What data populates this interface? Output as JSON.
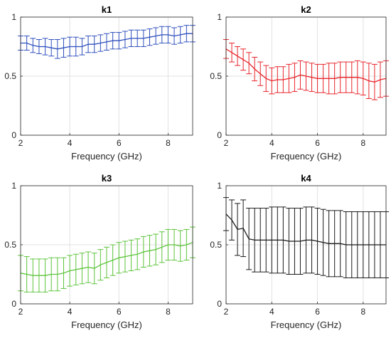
{
  "chart_data": [
    {
      "type": "line",
      "title": "k1",
      "xlabel": "Frequency (GHz)",
      "ylabel": "",
      "xlim": [
        2,
        9
      ],
      "ylim": [
        0,
        1
      ],
      "xticks": [
        "2",
        "4",
        "6",
        "8"
      ],
      "yticks": [
        "0",
        "0.5",
        "1"
      ],
      "grid": true,
      "color": "#2f4fbd",
      "x": [
        2.0,
        2.25,
        2.5,
        2.75,
        3.0,
        3.25,
        3.5,
        3.75,
        4.0,
        4.25,
        4.5,
        4.75,
        5.0,
        5.25,
        5.5,
        5.75,
        6.0,
        6.25,
        6.5,
        6.75,
        7.0,
        7.25,
        7.5,
        7.75,
        8.0,
        8.25,
        8.5,
        8.75,
        9.0
      ],
      "y": [
        0.78,
        0.78,
        0.76,
        0.75,
        0.75,
        0.74,
        0.73,
        0.74,
        0.75,
        0.75,
        0.75,
        0.77,
        0.77,
        0.78,
        0.79,
        0.8,
        0.8,
        0.81,
        0.82,
        0.82,
        0.82,
        0.83,
        0.84,
        0.85,
        0.85,
        0.84,
        0.85,
        0.86,
        0.86
      ],
      "err": [
        0.06,
        0.06,
        0.06,
        0.06,
        0.07,
        0.07,
        0.08,
        0.08,
        0.08,
        0.08,
        0.07,
        0.07,
        0.07,
        0.07,
        0.07,
        0.07,
        0.07,
        0.07,
        0.07,
        0.07,
        0.07,
        0.07,
        0.07,
        0.07,
        0.07,
        0.07,
        0.07,
        0.07,
        0.07
      ]
    },
    {
      "type": "line",
      "title": "k2",
      "xlabel": "Frequency (GHz)",
      "ylabel": "",
      "xlim": [
        2,
        9
      ],
      "ylim": [
        0,
        1
      ],
      "xticks": [
        "2",
        "4",
        "6",
        "8"
      ],
      "yticks": [
        "0",
        "0.5",
        "1"
      ],
      "grid": true,
      "color": "#e8252b",
      "x": [
        2.0,
        2.25,
        2.5,
        2.75,
        3.0,
        3.25,
        3.5,
        3.75,
        4.0,
        4.25,
        4.5,
        4.75,
        5.0,
        5.25,
        5.5,
        5.75,
        6.0,
        6.25,
        6.5,
        6.75,
        7.0,
        7.25,
        7.5,
        7.75,
        8.0,
        8.25,
        8.5,
        8.75,
        9.0
      ],
      "y": [
        0.73,
        0.7,
        0.67,
        0.64,
        0.61,
        0.56,
        0.52,
        0.48,
        0.46,
        0.47,
        0.47,
        0.48,
        0.49,
        0.51,
        0.5,
        0.49,
        0.48,
        0.48,
        0.48,
        0.48,
        0.49,
        0.49,
        0.49,
        0.49,
        0.48,
        0.46,
        0.45,
        0.47,
        0.48
      ],
      "err": [
        0.08,
        0.08,
        0.08,
        0.09,
        0.09,
        0.1,
        0.1,
        0.11,
        0.11,
        0.11,
        0.11,
        0.12,
        0.12,
        0.12,
        0.12,
        0.12,
        0.12,
        0.12,
        0.13,
        0.13,
        0.13,
        0.13,
        0.13,
        0.14,
        0.14,
        0.15,
        0.15,
        0.15,
        0.15
      ]
    },
    {
      "type": "line",
      "title": "k3",
      "xlabel": "Frequency (GHz)",
      "ylabel": "",
      "xlim": [
        2,
        9
      ],
      "ylim": [
        0,
        1
      ],
      "xticks": [
        "2",
        "4",
        "6",
        "8"
      ],
      "yticks": [
        "0",
        "0.5",
        "1"
      ],
      "grid": true,
      "color": "#5cc43a",
      "x": [
        2.0,
        2.25,
        2.5,
        2.75,
        3.0,
        3.25,
        3.5,
        3.75,
        4.0,
        4.25,
        4.5,
        4.75,
        5.0,
        5.25,
        5.5,
        5.75,
        6.0,
        6.25,
        6.5,
        6.75,
        7.0,
        7.25,
        7.5,
        7.75,
        8.0,
        8.25,
        8.5,
        8.75,
        9.0
      ],
      "y": [
        0.26,
        0.25,
        0.24,
        0.24,
        0.24,
        0.25,
        0.25,
        0.26,
        0.28,
        0.29,
        0.3,
        0.31,
        0.3,
        0.33,
        0.35,
        0.37,
        0.39,
        0.4,
        0.41,
        0.42,
        0.44,
        0.45,
        0.46,
        0.48,
        0.5,
        0.5,
        0.49,
        0.5,
        0.52
      ],
      "err": [
        0.15,
        0.15,
        0.14,
        0.14,
        0.14,
        0.14,
        0.14,
        0.13,
        0.13,
        0.13,
        0.13,
        0.13,
        0.13,
        0.13,
        0.13,
        0.13,
        0.13,
        0.13,
        0.13,
        0.13,
        0.13,
        0.13,
        0.13,
        0.13,
        0.13,
        0.13,
        0.13,
        0.13,
        0.13
      ]
    },
    {
      "type": "line",
      "title": "k4",
      "xlabel": "Frequency (GHz)",
      "ylabel": "",
      "xlim": [
        2,
        9
      ],
      "ylim": [
        0,
        1
      ],
      "xticks": [
        "2",
        "4",
        "6",
        "8"
      ],
      "yticks": [
        "0",
        "0.5",
        "1"
      ],
      "grid": true,
      "color": "#1a1a1a",
      "x": [
        2.0,
        2.25,
        2.5,
        2.75,
        3.0,
        3.25,
        3.5,
        3.75,
        4.0,
        4.25,
        4.5,
        4.75,
        5.0,
        5.25,
        5.5,
        5.75,
        6.0,
        6.25,
        6.5,
        6.75,
        7.0,
        7.25,
        7.5,
        7.75,
        8.0,
        8.25,
        8.5,
        8.75,
        9.0
      ],
      "y": [
        0.76,
        0.71,
        0.63,
        0.64,
        0.55,
        0.54,
        0.54,
        0.54,
        0.54,
        0.54,
        0.54,
        0.53,
        0.53,
        0.53,
        0.54,
        0.54,
        0.53,
        0.52,
        0.51,
        0.51,
        0.51,
        0.5,
        0.5,
        0.5,
        0.5,
        0.5,
        0.5,
        0.5,
        0.5
      ],
      "err": [
        0.14,
        0.17,
        0.22,
        0.24,
        0.26,
        0.27,
        0.27,
        0.27,
        0.28,
        0.28,
        0.28,
        0.28,
        0.28,
        0.28,
        0.28,
        0.28,
        0.28,
        0.28,
        0.28,
        0.28,
        0.28,
        0.28,
        0.28,
        0.28,
        0.28,
        0.28,
        0.28,
        0.28,
        0.28
      ]
    }
  ]
}
